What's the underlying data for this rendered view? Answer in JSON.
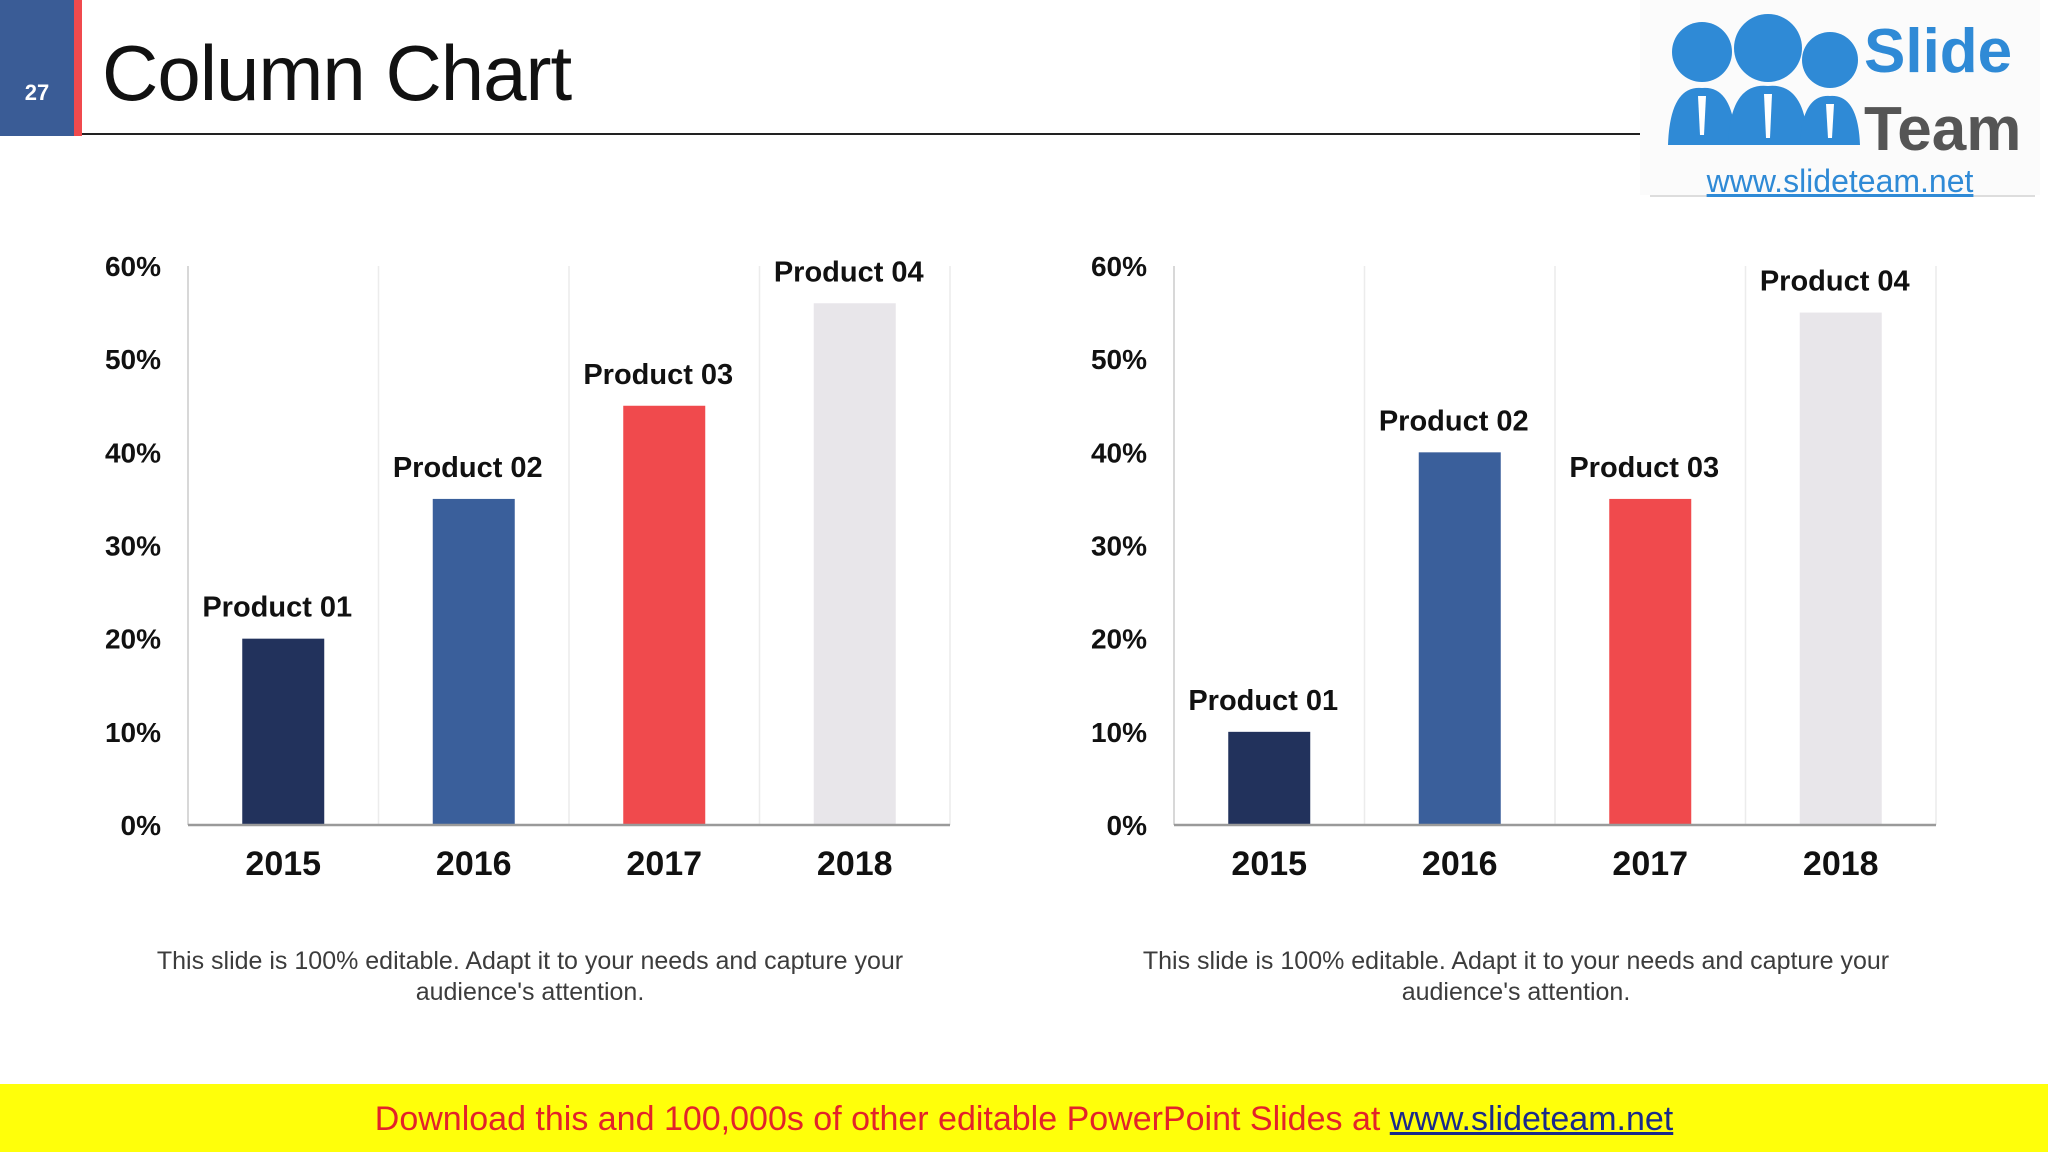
{
  "slide": {
    "number": "27",
    "title": "Column Chart"
  },
  "logo": {
    "word1": "Slide",
    "word2": "Team",
    "url": "www.slideteam.net"
  },
  "colors": {
    "dark_navy": "#22325c",
    "blue": "#3a5f9b",
    "red": "#f04a4d",
    "light_gray": "#e8e6ea",
    "axis": "#9a9a9a",
    "grid": "#ececec"
  },
  "chart_data": [
    {
      "type": "bar",
      "categories": [
        "2015",
        "2016",
        "2017",
        "2018"
      ],
      "values": [
        20,
        35,
        45,
        56
      ],
      "data_labels": [
        "Product 01",
        "Product 02",
        "Product 03",
        "Product 04"
      ],
      "bar_colors": [
        "#22325c",
        "#3a5f9b",
        "#f04a4d",
        "#e8e6ea"
      ],
      "yticks": [
        "0%",
        "10%",
        "20%",
        "30%",
        "40%",
        "50%",
        "60%"
      ],
      "ylim": [
        0,
        60
      ],
      "title": "",
      "xlabel": "",
      "ylabel": ""
    },
    {
      "type": "bar",
      "categories": [
        "2015",
        "2016",
        "2017",
        "2018"
      ],
      "values": [
        10,
        40,
        35,
        55
      ],
      "data_labels": [
        "Product 01",
        "Product 02",
        "Product 03",
        "Product 04"
      ],
      "bar_colors": [
        "#22325c",
        "#3a5f9b",
        "#f04a4d",
        "#e8e6ea"
      ],
      "yticks": [
        "0%",
        "10%",
        "20%",
        "30%",
        "40%",
        "50%",
        "60%"
      ],
      "ylim": [
        0,
        60
      ],
      "title": "",
      "xlabel": "",
      "ylabel": ""
    }
  ],
  "captions": [
    "This slide is 100% editable. Adapt it to your needs and capture your audience's attention.",
    "This slide is 100% editable. Adapt it to your needs and capture your audience's attention."
  ],
  "banner": {
    "text": "Download this and 100,000s of other editable PowerPoint Slides at ",
    "link": "www.slideteam.net"
  }
}
